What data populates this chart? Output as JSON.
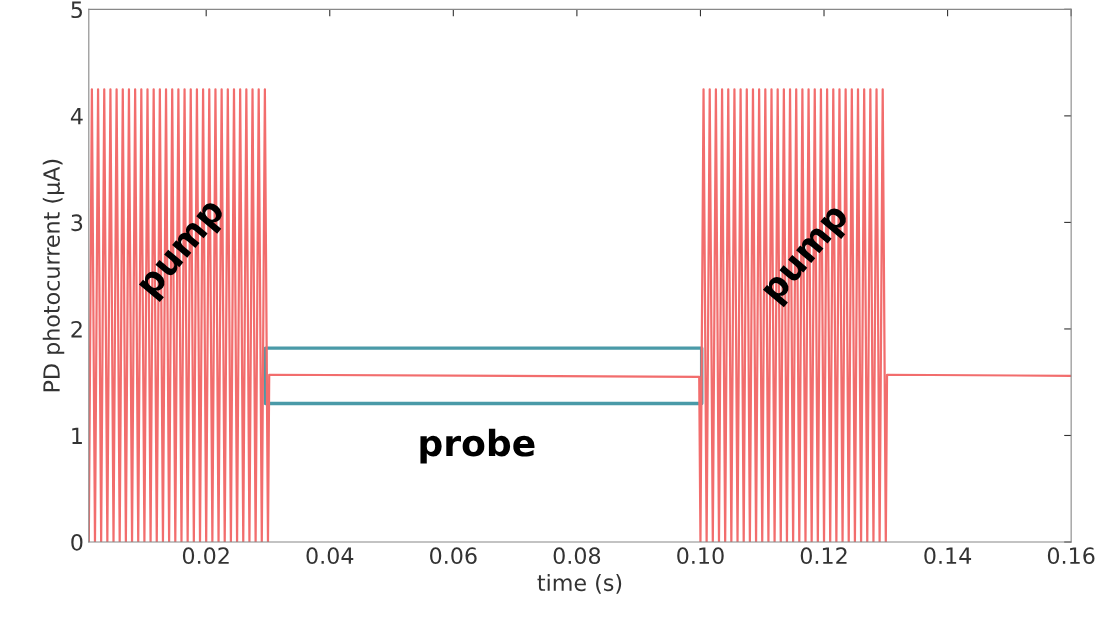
{
  "chart_data": {
    "type": "line",
    "xlabel": "time (s)",
    "ylabel": "PD photocurrent (μA)",
    "xlim": [
      0.001,
      0.16
    ],
    "ylim": [
      0,
      5
    ],
    "xticks": [
      0.02,
      0.04,
      0.06,
      0.08,
      {
        "value": 0.1,
        "label": "0.10"
      },
      0.12,
      0.14,
      0.16
    ],
    "yticks": [
      0,
      1,
      2,
      3,
      4,
      5
    ],
    "grid": false,
    "legend": false,
    "marker": "none",
    "line_style": "solid",
    "series": [
      {
        "color": "#f26d6d",
        "x": [
          0.001,
          0.0015,
          0.002,
          0.0025,
          0.003,
          0.0035,
          0.004,
          0.0045,
          0.005,
          0.0055,
          0.006,
          0.0065,
          0.007,
          0.0075,
          0.008,
          0.0085,
          0.009,
          0.0095,
          0.01,
          0.0105,
          0.011,
          0.0115,
          0.012,
          0.0125,
          0.013,
          0.0135,
          0.014,
          0.0145,
          0.015,
          0.0155,
          0.016,
          0.0165,
          0.017,
          0.0175,
          0.018,
          0.0185,
          0.019,
          0.0195,
          0.02,
          0.0205,
          0.021,
          0.0215,
          0.022,
          0.0225,
          0.023,
          0.0235,
          0.024,
          0.0245,
          0.025,
          0.0255,
          0.026,
          0.0265,
          0.027,
          0.0275,
          0.028,
          0.0285,
          0.029,
          0.0295,
          0.03,
          0.0302,
          0.0998,
          0.1,
          0.1005,
          0.101,
          0.1015,
          0.102,
          0.1025,
          0.103,
          0.1035,
          0.104,
          0.1045,
          0.105,
          0.1055,
          0.106,
          0.1065,
          0.107,
          0.1075,
          0.108,
          0.1085,
          0.109,
          0.1095,
          0.11,
          0.1105,
          0.111,
          0.1115,
          0.112,
          0.1125,
          0.113,
          0.1135,
          0.114,
          0.1145,
          0.115,
          0.1155,
          0.116,
          0.1165,
          0.117,
          0.1175,
          0.118,
          0.1185,
          0.119,
          0.1195,
          0.12,
          0.1205,
          0.121,
          0.1215,
          0.122,
          0.1225,
          0.123,
          0.1235,
          0.124,
          0.1245,
          0.125,
          0.1255,
          0.126,
          0.1265,
          0.127,
          0.1275,
          0.128,
          0.1285,
          0.129,
          0.1295,
          0.13,
          0.1302,
          0.16
        ],
        "values": [
          0,
          4.25,
          0,
          4.25,
          0,
          4.25,
          0,
          4.25,
          0,
          4.25,
          0,
          4.25,
          0,
          4.25,
          0,
          4.25,
          0,
          4.25,
          0,
          4.25,
          0,
          4.25,
          0,
          4.25,
          0,
          4.25,
          0,
          4.25,
          0,
          4.25,
          0,
          4.25,
          0,
          4.25,
          0,
          4.25,
          0,
          4.25,
          0,
          4.25,
          0,
          4.25,
          0,
          4.25,
          0,
          4.25,
          0,
          4.25,
          0,
          4.25,
          0,
          4.25,
          0,
          4.25,
          0,
          4.25,
          0,
          4.25,
          0,
          1.57,
          1.55,
          0,
          4.25,
          0,
          4.25,
          0,
          4.25,
          0,
          4.25,
          0,
          4.25,
          0,
          4.25,
          0,
          4.25,
          0,
          4.25,
          0,
          4.25,
          0,
          4.25,
          0,
          4.25,
          0,
          4.25,
          0,
          4.25,
          0,
          4.25,
          0,
          4.25,
          0,
          4.25,
          0,
          4.25,
          0,
          4.25,
          0,
          4.25,
          0,
          4.25,
          0,
          4.25,
          0,
          4.25,
          0,
          4.25,
          0,
          4.25,
          0,
          4.25,
          0,
          4.25,
          0,
          4.25,
          0,
          4.25,
          0,
          4.25,
          0,
          4.25,
          0,
          1.57,
          1.56
        ]
      }
    ],
    "annotations": [
      {
        "text": "pump",
        "x": 0.016,
        "y": 2.75
      },
      {
        "text": "pump",
        "x": 0.117,
        "y": 2.7
      },
      "probe"
    ]
  }
}
